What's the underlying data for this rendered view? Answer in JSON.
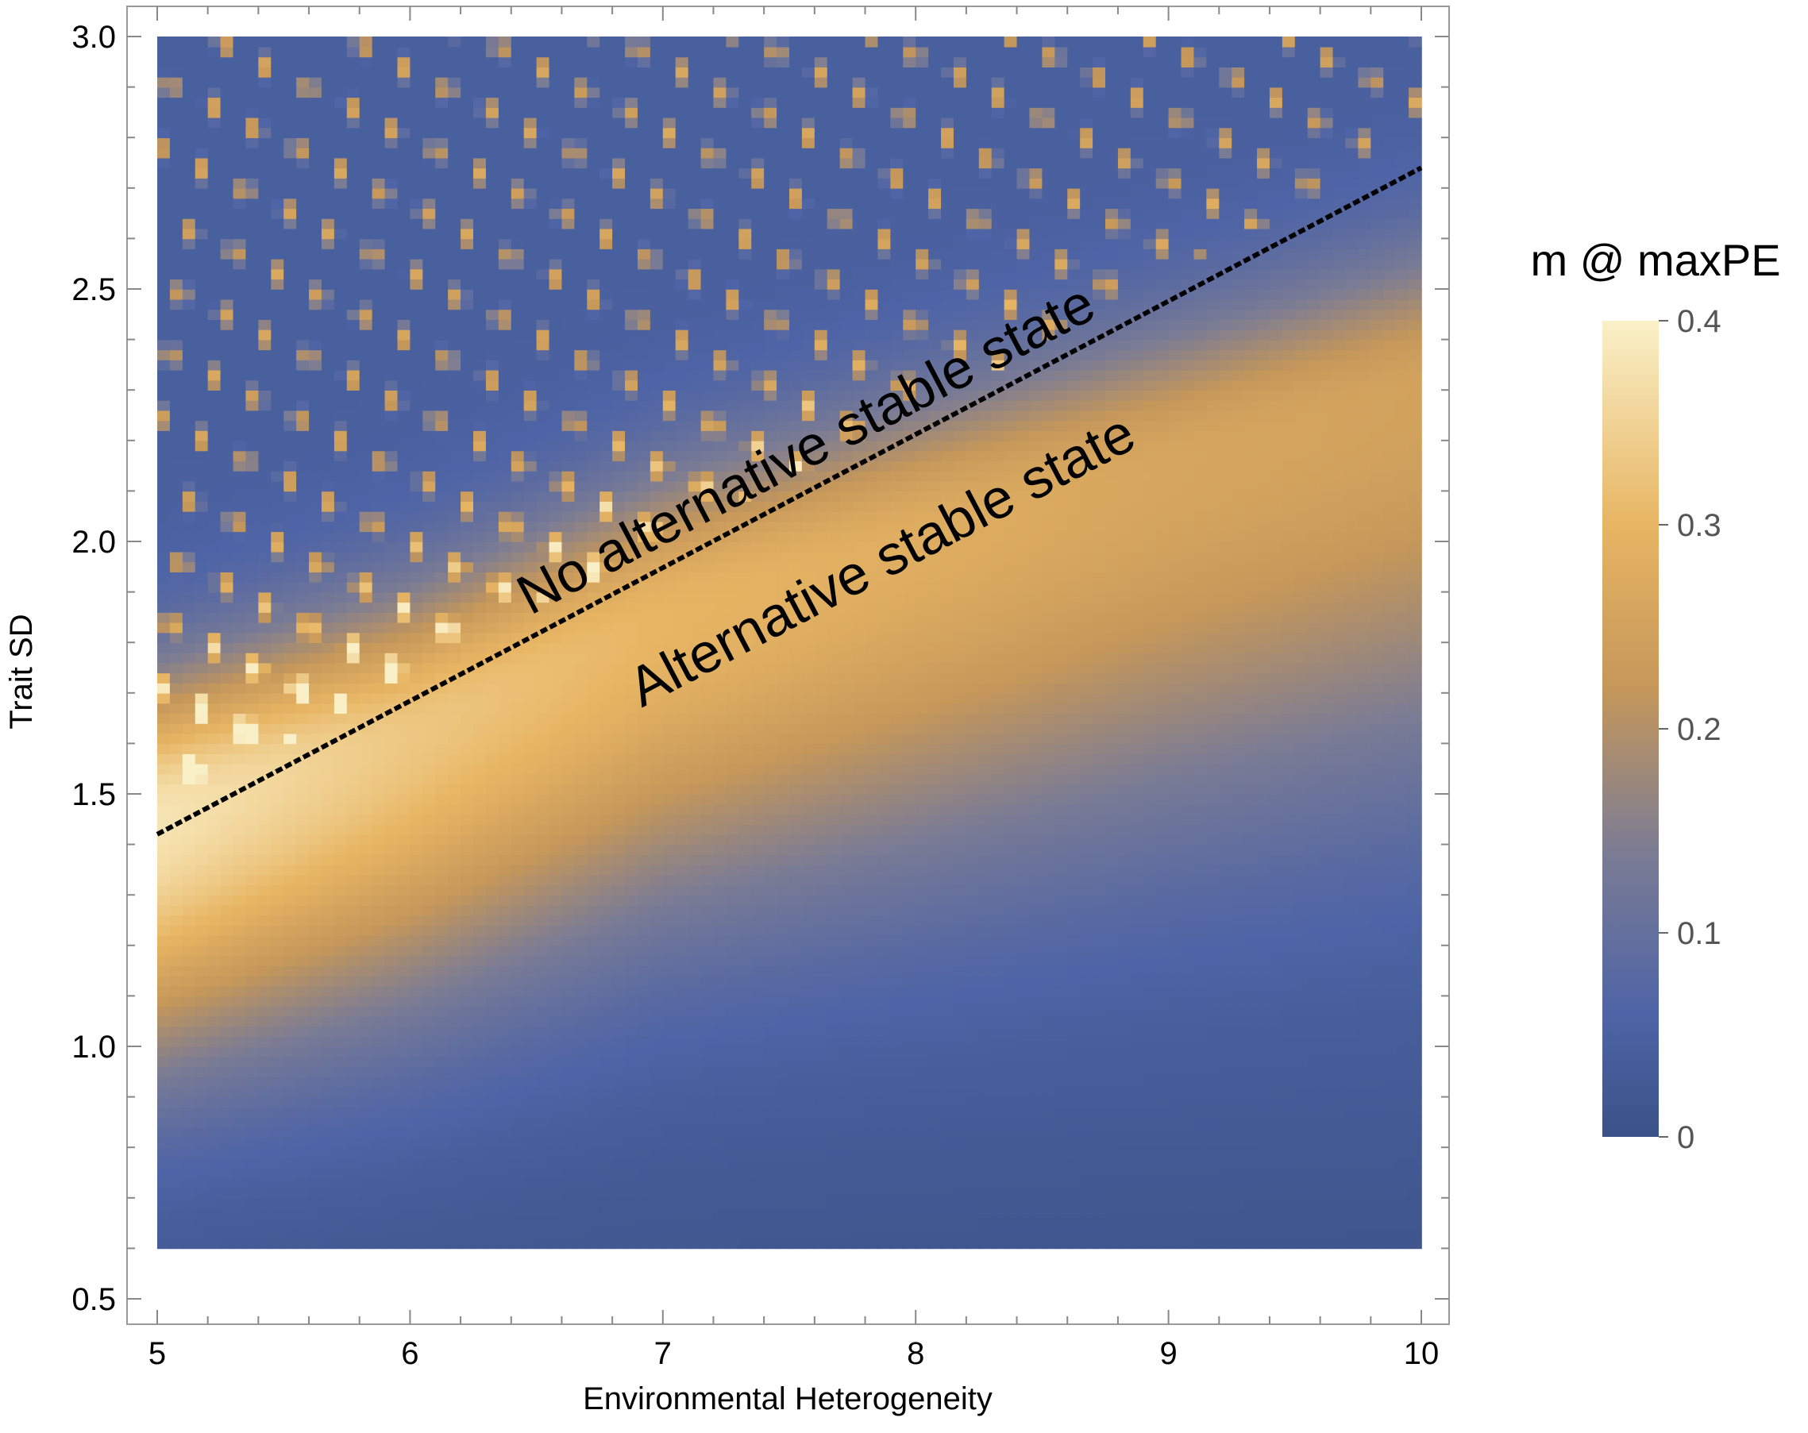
{
  "chart_data": {
    "type": "heatmap",
    "title": "",
    "xlabel": "Environmental Heterogeneity",
    "ylabel": "Trait SD",
    "xlim": [
      5,
      10
    ],
    "ylim": [
      0.45,
      3.05
    ],
    "data_y_range": [
      0.6,
      3.0
    ],
    "x_ticks": [
      "5",
      "6",
      "7",
      "8",
      "9",
      "10"
    ],
    "y_ticks": [
      "0.5",
      "1.0",
      "1.5",
      "2.0",
      "2.5",
      "3.0"
    ],
    "colorbar": {
      "title": "m @ maxPE",
      "range": [
        0,
        0.4
      ],
      "ticks": [
        "0",
        "0.1",
        "0.2",
        "0.3",
        "0.4"
      ],
      "colors": [
        "#3b5287",
        "#4e64a6",
        "#7b7c94",
        "#c5975a",
        "#e7b563",
        "#faf0c8"
      ]
    },
    "peak_band_trait_sd": {
      "x": [
        5,
        6,
        7,
        8,
        9,
        10
      ],
      "center": [
        1.45,
        1.62,
        1.85,
        2.0,
        2.15,
        2.3
      ],
      "peak_value": [
        0.38,
        0.33,
        0.3,
        0.28,
        0.26,
        0.25
      ]
    },
    "boundary_line": {
      "style": "dashed",
      "color": "#000000",
      "points": [
        [
          5,
          1.42
        ],
        [
          10,
          2.74
        ]
      ]
    },
    "annotations": [
      {
        "text": "No alternative stable state",
        "x": 7.6,
        "y": 2.15
      },
      {
        "text": "Alternative stable state",
        "x": 7.9,
        "y": 1.93
      }
    ]
  }
}
